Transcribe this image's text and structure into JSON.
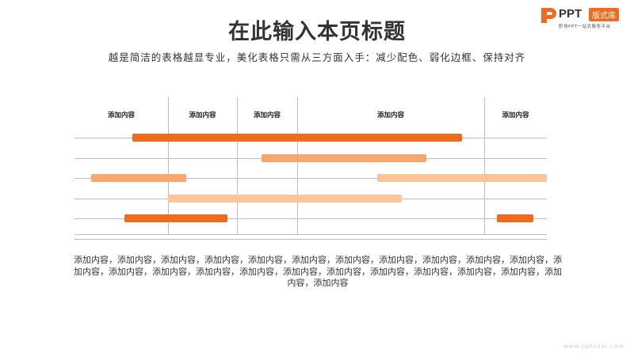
{
  "header": {
    "title": "在此输入本页标题",
    "subtitle": "越是简洁的表格越显专业，美化表格只需从三方面入手：减少配色、弱化边框、保持对齐"
  },
  "logo": {
    "brand": "PPT",
    "badge": "版式库",
    "tagline": "职场PPT一站式服务平台",
    "icon": "ppt-logo-mark-icon",
    "color": "#f26a1b"
  },
  "table": {
    "columns": [
      "添加内容",
      "添加内容",
      "添加内容",
      "添加内容",
      "添加内容"
    ],
    "bars": [
      {
        "row": 1,
        "start": 0.62,
        "end": 3.88,
        "color": "#f26a1b"
      },
      {
        "row": 2,
        "start": 2.41,
        "end": 3.69,
        "color": "#f9a66f"
      },
      {
        "row": 3,
        "start": 0.18,
        "end": 1.26,
        "color": "#f9a66f"
      },
      {
        "row": 3,
        "start": 3.43,
        "end": 5.0,
        "color": "#fbc49a"
      },
      {
        "row": 4,
        "start": 1.0,
        "end": 3.56,
        "color": "#fbc49a"
      },
      {
        "row": 5,
        "start": 0.53,
        "end": 1.86,
        "color": "#f26a1b"
      },
      {
        "row": 5,
        "start": 4.2,
        "end": 4.79,
        "color": "#f26a1b"
      }
    ]
  },
  "body_text": "添加内容，添加内容，添加内容，添加内容，添加内容，添加内容，添加内容，添加内容，添加内容，添加内容，添加内容，添加内容，添加内容，添加内容，添加内容，添加内容，添加内容，添加内容，添加内容，添加内容，添加内容，添加内容，添加内容，添加内容",
  "footer": {
    "url": "www.pptcool.com"
  }
}
